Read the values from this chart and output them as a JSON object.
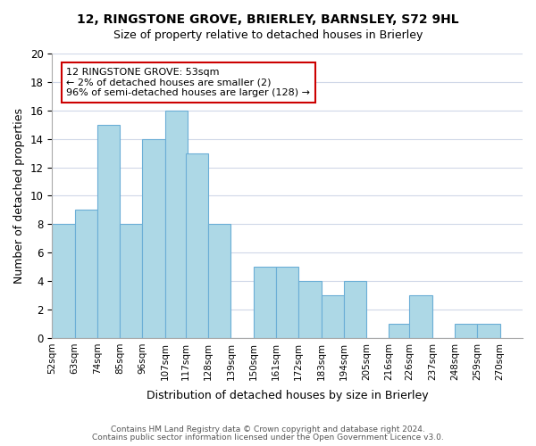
{
  "title_line1": "12, RINGSTONE GROVE, BRIERLEY, BARNSLEY, S72 9HL",
  "title_line2": "Size of property relative to detached houses in Brierley",
  "xlabel": "Distribution of detached houses by size in Brierley",
  "ylabel": "Number of detached properties",
  "bin_labels": [
    "52sqm",
    "63sqm",
    "74sqm",
    "85sqm",
    "96sqm",
    "107sqm",
    "117sqm",
    "128sqm",
    "139sqm",
    "150sqm",
    "161sqm",
    "172sqm",
    "183sqm",
    "194sqm",
    "205sqm",
    "216sqm",
    "226sqm",
    "237sqm",
    "248sqm",
    "259sqm",
    "270sqm"
  ],
  "bin_edges": [
    52,
    63,
    74,
    85,
    96,
    107,
    117,
    128,
    139,
    150,
    161,
    172,
    183,
    194,
    205,
    216,
    226,
    237,
    248,
    259,
    270
  ],
  "bar_heights": [
    8,
    9,
    15,
    8,
    14,
    16,
    13,
    8,
    0,
    5,
    5,
    4,
    3,
    4,
    0,
    1,
    3,
    0,
    1,
    1
  ],
  "bar_color": "#add8e6",
  "bar_edge_color": "#6baed6",
  "ylim": [
    0,
    20
  ],
  "yticks": [
    0,
    2,
    4,
    6,
    8,
    10,
    12,
    14,
    16,
    18,
    20
  ],
  "annotation_title": "12 RINGSTONE GROVE: 53sqm",
  "annotation_line2": "← 2% of detached houses are smaller (2)",
  "annotation_line3": "96% of semi-detached houses are larger (128) →",
  "annotation_box_color": "#ffffff",
  "annotation_box_edge_color": "#cc0000",
  "footnote_line1": "Contains HM Land Registry data © Crown copyright and database right 2024.",
  "footnote_line2": "Contains public sector information licensed under the Open Government Licence v3.0.",
  "background_color": "#ffffff",
  "grid_color": "#d0d8e8"
}
